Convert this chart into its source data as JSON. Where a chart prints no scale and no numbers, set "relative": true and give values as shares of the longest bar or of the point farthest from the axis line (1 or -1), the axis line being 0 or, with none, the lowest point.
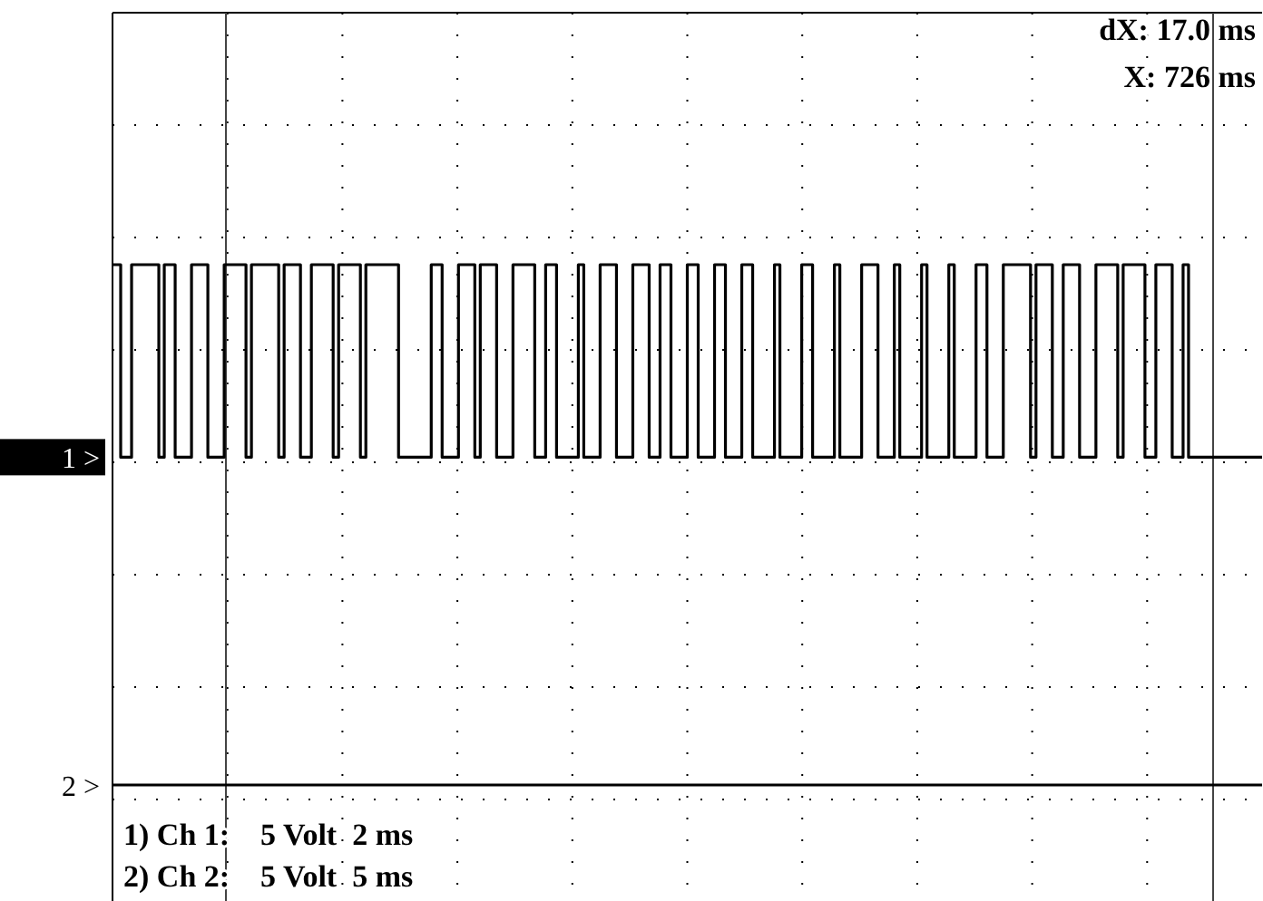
{
  "chart_data": {
    "type": "step",
    "relative": true,
    "grid": true,
    "line_style": "solid",
    "categories": [
      null,
      null,
      null,
      null,
      null,
      null,
      null,
      null,
      null,
      null,
      null,
      null,
      null,
      null,
      null,
      null,
      null,
      null,
      null,
      null,
      null,
      null,
      null,
      null,
      null,
      null,
      null,
      null,
      null,
      null,
      null,
      null,
      null,
      null,
      null,
      null,
      null,
      null,
      null,
      null,
      null,
      null,
      null,
      null,
      null,
      null,
      null,
      null,
      null,
      null,
      null,
      null,
      null,
      null,
      null,
      null,
      null,
      null,
      null,
      null,
      null,
      null,
      null,
      null,
      null,
      null,
      null,
      null,
      null,
      null,
      null,
      null,
      null,
      null,
      null,
      null,
      null,
      null,
      null,
      null,
      null,
      null,
      null,
      null,
      null,
      null,
      null,
      null,
      null,
      null,
      null,
      null,
      null,
      null,
      null,
      null,
      null,
      null,
      null,
      null,
      null,
      null,
      null,
      null,
      null,
      null,
      null,
      null,
      null,
      null,
      null,
      null,
      null,
      null,
      null,
      null,
      null,
      null,
      null,
      null,
      null,
      null,
      null,
      null,
      null,
      null,
      null,
      null,
      null,
      null,
      null,
      null,
      null,
      null,
      null,
      null,
      null,
      null,
      null,
      null,
      null,
      null,
      null,
      null,
      null,
      null,
      null,
      null,
      null,
      null,
      null,
      null,
      null,
      null,
      null,
      null,
      null,
      null,
      null,
      null,
      null,
      null,
      null,
      null,
      null,
      null,
      null,
      null,
      null,
      null,
      null,
      null,
      null,
      null,
      null,
      null,
      null,
      null,
      null,
      null,
      null,
      null,
      null,
      null,
      null,
      null,
      null,
      null,
      null,
      null,
      null,
      null,
      null,
      null,
      null,
      null,
      null,
      null,
      null,
      null,
      null,
      null,
      null,
      null,
      null,
      null,
      null,
      null,
      null,
      null,
      null,
      null
    ],
    "series": [
      {
        "name": "1 >",
        "color": "#000000",
        "values": [
          1,
          1,
          0.63,
          0.63,
          1,
          1,
          1,
          1,
          1,
          0.63,
          1,
          1,
          0.63,
          0.63,
          0.63,
          1,
          1,
          1,
          0.63,
          0.63,
          0.63,
          1,
          1,
          1,
          1,
          0.63,
          1,
          1,
          1,
          1,
          1,
          0.63,
          1,
          1,
          1,
          0.63,
          0.63,
          1,
          1,
          1,
          1,
          0.63,
          1,
          1,
          1,
          1,
          0.63,
          1,
          1,
          1,
          1,
          1,
          1,
          0.63,
          0.63,
          0.63,
          0.63,
          0.63,
          0.63,
          1,
          1,
          0.63,
          0.63,
          0.63,
          1,
          1,
          1,
          0.63,
          1,
          1,
          1,
          0.63,
          0.63,
          0.63,
          1,
          1,
          1,
          1,
          0.63,
          0.63,
          1,
          1,
          0.63,
          0.63,
          0.63,
          0.63,
          1,
          0.63,
          0.63,
          0.63,
          1,
          1,
          1,
          0.63,
          0.63,
          0.63,
          1,
          1,
          1,
          0.63,
          0.63,
          1,
          1,
          0.63,
          0.63,
          0.63,
          1,
          1,
          0.63,
          0.63,
          0.63,
          1,
          1,
          0.63,
          0.63,
          0.63,
          1,
          1,
          0.63,
          0.63,
          0.63,
          0.63,
          1,
          0.63,
          0.63,
          0.63,
          0.63,
          1,
          1,
          0.63,
          0.63,
          0.63,
          0.63,
          1,
          0.63,
          0.63,
          0.63,
          0.63,
          1,
          1,
          1,
          0.63,
          0.63,
          0.63,
          1,
          0.63,
          0.63,
          0.63,
          0.63,
          1,
          0.63,
          0.63,
          0.63,
          0.63,
          1,
          0.63,
          0.63,
          0.63,
          0.63,
          1,
          1,
          0.63,
          0.63,
          0.63,
          1,
          1,
          1,
          1,
          1,
          0.63,
          1,
          1,
          1,
          0.63,
          0.63,
          1,
          1,
          1,
          0.63,
          0.63,
          0.63,
          1,
          1,
          1,
          1,
          0.63,
          1,
          1,
          1,
          1,
          0.63,
          0.63,
          1,
          1,
          1,
          0.63,
          0.63,
          1,
          0.63,
          0.63,
          0.63,
          0.63,
          0.63,
          0.63,
          0.63,
          0.63,
          0.63,
          0.63,
          0.63,
          0.63,
          0.63,
          0.63
        ]
      },
      {
        "name": "2 >",
        "color": "#000000",
        "values": [
          0,
          0,
          0,
          0,
          0,
          0,
          0,
          0,
          0,
          0,
          0,
          0,
          0,
          0,
          0,
          0,
          0,
          0,
          0,
          0,
          0,
          0,
          0,
          0,
          0,
          0,
          0,
          0,
          0,
          0,
          0,
          0,
          0,
          0,
          0,
          0,
          0,
          0,
          0,
          0,
          0,
          0,
          0,
          0,
          0,
          0,
          0,
          0,
          0,
          0,
          0,
          0,
          0,
          0,
          0,
          0,
          0,
          0,
          0,
          0,
          0,
          0,
          0,
          0,
          0,
          0,
          0,
          0,
          0,
          0,
          0,
          0,
          0,
          0,
          0,
          0,
          0,
          0,
          0,
          0,
          0,
          0,
          0,
          0,
          0,
          0,
          0,
          0,
          0,
          0,
          0,
          0,
          0,
          0,
          0,
          0,
          0,
          0,
          0,
          0,
          0,
          0,
          0,
          0,
          0,
          0,
          0,
          0,
          0,
          0,
          0,
          0,
          0,
          0,
          0,
          0,
          0,
          0,
          0,
          0,
          0,
          0,
          0,
          0,
          0,
          0,
          0,
          0,
          0,
          0,
          0,
          0,
          0,
          0,
          0,
          0,
          0,
          0,
          0,
          0,
          0,
          0,
          0,
          0,
          0,
          0,
          0,
          0,
          0,
          0,
          0,
          0,
          0,
          0,
          0,
          0,
          0,
          0,
          0,
          0,
          0,
          0,
          0,
          0,
          0,
          0,
          0,
          0,
          0,
          0,
          0,
          0,
          0,
          0,
          0,
          0,
          0,
          0,
          0,
          0,
          0,
          0,
          0,
          0,
          0,
          0,
          0,
          0,
          0,
          0,
          0,
          0,
          0,
          0,
          0,
          0,
          0,
          0,
          0,
          0,
          0,
          0,
          0,
          0,
          0,
          0,
          0,
          0,
          0,
          0,
          0,
          0
        ]
      }
    ],
    "annotations": [
      "dX: 17.0 ms",
      "X: 726 ms",
      "1) Ch 1:    5 Volt  2 ms",
      "2) Ch 2:    5 Volt  5 ms"
    ]
  }
}
